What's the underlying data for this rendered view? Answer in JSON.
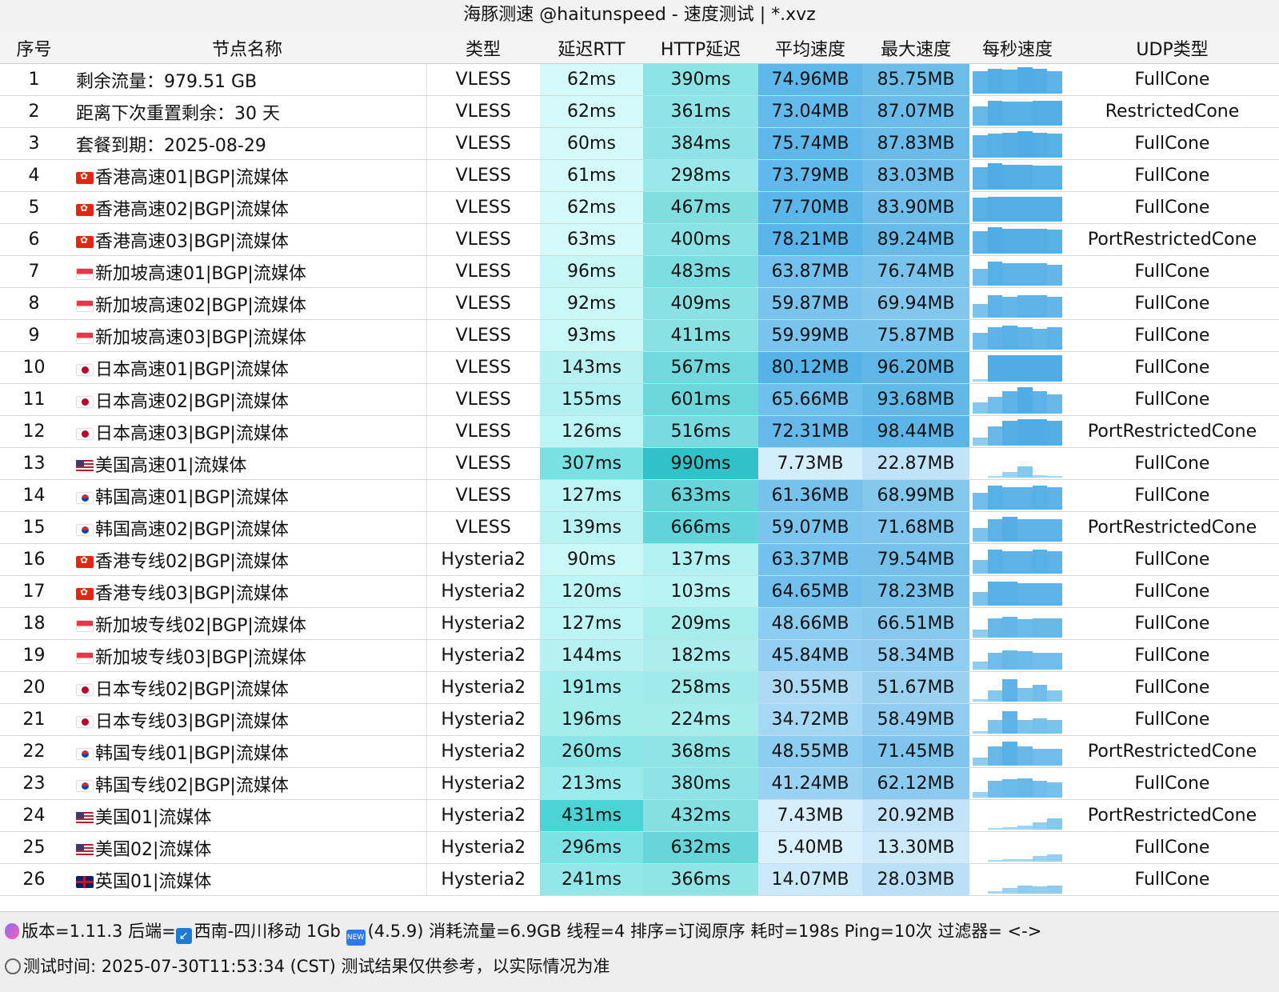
{
  "window": {
    "title": "海豚测速 @haitunspeed  - 速度测试 | *.xvz"
  },
  "columns": [
    "序号",
    "节点名称",
    "类型",
    "延迟RTT",
    "HTTP延迟",
    "平均速度",
    "最大速度",
    "每秒速度",
    "UDP类型"
  ],
  "rows": [
    {
      "idx": "1",
      "flag": "",
      "name": "剩余流量：979.51 GB",
      "type": "VLESS",
      "rtt": "62ms",
      "http": "390ms",
      "avg": "74.96MB",
      "max": "85.75MB",
      "udp": "FullCone",
      "spark": [
        0.8,
        0.9,
        0.85,
        0.95,
        0.9,
        0.8
      ]
    },
    {
      "idx": "2",
      "flag": "",
      "name": "距离下次重置剩余：30 天",
      "type": "VLESS",
      "rtt": "62ms",
      "http": "361ms",
      "avg": "73.04MB",
      "max": "87.07MB",
      "udp": "RestrictedCone",
      "spark": [
        0.7,
        0.9,
        0.85,
        0.85,
        0.9,
        0.9
      ]
    },
    {
      "idx": "3",
      "flag": "",
      "name": "套餐到期：2025-08-29",
      "type": "VLESS",
      "rtt": "60ms",
      "http": "384ms",
      "avg": "75.74MB",
      "max": "87.83MB",
      "udp": "FullCone",
      "spark": [
        0.8,
        0.85,
        0.9,
        0.95,
        0.9,
        0.85
      ]
    },
    {
      "idx": "4",
      "flag": "hk",
      "name": "香港高速01|BGP|流媒体",
      "type": "VLESS",
      "rtt": "61ms",
      "http": "298ms",
      "avg": "73.79MB",
      "max": "83.03MB",
      "udp": "FullCone",
      "spark": [
        0.8,
        0.95,
        0.9,
        0.9,
        0.85,
        0.85
      ]
    },
    {
      "idx": "5",
      "flag": "hk",
      "name": "香港高速02|BGP|流媒体",
      "type": "VLESS",
      "rtt": "62ms",
      "http": "467ms",
      "avg": "77.70MB",
      "max": "83.90MB",
      "udp": "FullCone",
      "spark": [
        0.85,
        0.9,
        0.9,
        0.9,
        0.9,
        0.9
      ]
    },
    {
      "idx": "6",
      "flag": "hk",
      "name": "香港高速03|BGP|流媒体",
      "type": "VLESS",
      "rtt": "63ms",
      "http": "400ms",
      "avg": "78.21MB",
      "max": "89.24MB",
      "udp": "PortRestrictedCone",
      "spark": [
        0.8,
        0.95,
        0.9,
        0.9,
        0.9,
        0.85
      ]
    },
    {
      "idx": "7",
      "flag": "sg",
      "name": "新加坡高速01|BGP|流媒体",
      "type": "VLESS",
      "rtt": "96ms",
      "http": "483ms",
      "avg": "63.87MB",
      "max": "76.74MB",
      "udp": "FullCone",
      "spark": [
        0.6,
        0.85,
        0.8,
        0.8,
        0.8,
        0.75
      ]
    },
    {
      "idx": "8",
      "flag": "sg",
      "name": "新加坡高速02|BGP|流媒体",
      "type": "VLESS",
      "rtt": "92ms",
      "http": "409ms",
      "avg": "59.87MB",
      "max": "69.94MB",
      "udp": "FullCone",
      "spark": [
        0.5,
        0.8,
        0.75,
        0.8,
        0.8,
        0.75
      ]
    },
    {
      "idx": "9",
      "flag": "sg",
      "name": "新加坡高速03|BGP|流媒体",
      "type": "VLESS",
      "rtt": "93ms",
      "http": "411ms",
      "avg": "59.99MB",
      "max": "75.87MB",
      "udp": "FullCone",
      "spark": [
        0.6,
        0.8,
        0.85,
        0.8,
        0.75,
        0.8
      ]
    },
    {
      "idx": "10",
      "flag": "jp",
      "name": "日本高速01|BGP|流媒体",
      "type": "VLESS",
      "rtt": "143ms",
      "http": "567ms",
      "avg": "80.12MB",
      "max": "96.20MB",
      "udp": "FullCone",
      "spark": [
        0.1,
        0.95,
        0.95,
        0.95,
        0.95,
        0.95
      ]
    },
    {
      "idx": "11",
      "flag": "jp",
      "name": "日本高速02|BGP|流媒体",
      "type": "VLESS",
      "rtt": "155ms",
      "http": "601ms",
      "avg": "65.66MB",
      "max": "93.68MB",
      "udp": "FullCone",
      "spark": [
        0.4,
        0.6,
        0.8,
        0.95,
        0.8,
        0.7
      ]
    },
    {
      "idx": "12",
      "flag": "jp",
      "name": "日本高速03|BGP|流媒体",
      "type": "VLESS",
      "rtt": "126ms",
      "http": "516ms",
      "avg": "72.31MB",
      "max": "98.44MB",
      "udp": "PortRestrictedCone",
      "spark": [
        0.3,
        0.7,
        0.9,
        0.95,
        0.95,
        0.9
      ]
    },
    {
      "idx": "13",
      "flag": "us",
      "name": "美国高速01|流媒体",
      "type": "VLESS",
      "rtt": "307ms",
      "http": "990ms",
      "avg": "7.73MB",
      "max": "22.87MB",
      "udp": "FullCone",
      "spark": [
        0.0,
        0.05,
        0.2,
        0.4,
        0.1,
        0.05
      ]
    },
    {
      "idx": "14",
      "flag": "kr",
      "name": "韩国高速01|BGP|流媒体",
      "type": "VLESS",
      "rtt": "127ms",
      "http": "633ms",
      "avg": "61.36MB",
      "max": "68.99MB",
      "udp": "FullCone",
      "spark": [
        0.6,
        0.85,
        0.8,
        0.8,
        0.85,
        0.8
      ]
    },
    {
      "idx": "15",
      "flag": "kr",
      "name": "韩国高速02|BGP|流媒体",
      "type": "VLESS",
      "rtt": "139ms",
      "http": "666ms",
      "avg": "59.07MB",
      "max": "71.68MB",
      "udp": "PortRestrictedCone",
      "spark": [
        0.5,
        0.8,
        0.9,
        0.8,
        0.8,
        0.8
      ]
    },
    {
      "idx": "16",
      "flag": "hk",
      "name": "香港专线02|BGP|流媒体",
      "type": "Hysteria2",
      "rtt": "90ms",
      "http": "137ms",
      "avg": "63.37MB",
      "max": "79.54MB",
      "udp": "FullCone",
      "spark": [
        0.5,
        0.85,
        0.8,
        0.8,
        0.85,
        0.8
      ]
    },
    {
      "idx": "17",
      "flag": "hk",
      "name": "香港专线03|BGP|流媒体",
      "type": "Hysteria2",
      "rtt": "120ms",
      "http": "103ms",
      "avg": "64.65MB",
      "max": "78.23MB",
      "udp": "FullCone",
      "spark": [
        0.5,
        0.85,
        0.85,
        0.8,
        0.8,
        0.8
      ]
    },
    {
      "idx": "18",
      "flag": "sg",
      "name": "新加坡专线02|BGP|流媒体",
      "type": "Hysteria2",
      "rtt": "127ms",
      "http": "209ms",
      "avg": "48.66MB",
      "max": "66.51MB",
      "udp": "FullCone",
      "spark": [
        0.3,
        0.7,
        0.75,
        0.65,
        0.7,
        0.7
      ]
    },
    {
      "idx": "19",
      "flag": "sg",
      "name": "新加坡专线03|BGP|流媒体",
      "type": "Hysteria2",
      "rtt": "144ms",
      "http": "182ms",
      "avg": "45.84MB",
      "max": "58.34MB",
      "udp": "FullCone",
      "spark": [
        0.3,
        0.6,
        0.7,
        0.65,
        0.6,
        0.6
      ]
    },
    {
      "idx": "20",
      "flag": "jp",
      "name": "日本专线02|BGP|流媒体",
      "type": "Hysteria2",
      "rtt": "191ms",
      "http": "258ms",
      "avg": "30.55MB",
      "max": "51.67MB",
      "udp": "FullCone",
      "spark": [
        0.1,
        0.4,
        0.8,
        0.5,
        0.6,
        0.4
      ]
    },
    {
      "idx": "21",
      "flag": "jp",
      "name": "日本专线03|BGP|流媒体",
      "type": "Hysteria2",
      "rtt": "196ms",
      "http": "224ms",
      "avg": "34.72MB",
      "max": "58.49MB",
      "udp": "FullCone",
      "spark": [
        0.1,
        0.5,
        0.8,
        0.5,
        0.55,
        0.5
      ]
    },
    {
      "idx": "22",
      "flag": "kr",
      "name": "韩国专线01|BGP|流媒体",
      "type": "Hysteria2",
      "rtt": "260ms",
      "http": "368ms",
      "avg": "48.55MB",
      "max": "71.45MB",
      "udp": "PortRestrictedCone",
      "spark": [
        0.3,
        0.7,
        0.85,
        0.7,
        0.6,
        0.6
      ]
    },
    {
      "idx": "23",
      "flag": "kr",
      "name": "韩国专线02|BGP|流媒体",
      "type": "Hysteria2",
      "rtt": "213ms",
      "http": "380ms",
      "avg": "41.24MB",
      "max": "62.12MB",
      "udp": "FullCone",
      "spark": [
        0.2,
        0.6,
        0.65,
        0.7,
        0.6,
        0.55
      ]
    },
    {
      "idx": "24",
      "flag": "us",
      "name": "美国01|流媒体",
      "type": "Hysteria2",
      "rtt": "431ms",
      "http": "432ms",
      "avg": "7.43MB",
      "max": "20.92MB",
      "udp": "PortRestrictedCone",
      "spark": [
        0.0,
        0.05,
        0.1,
        0.15,
        0.25,
        0.4
      ]
    },
    {
      "idx": "25",
      "flag": "us",
      "name": "美国02|流媒体",
      "type": "Hysteria2",
      "rtt": "296ms",
      "http": "632ms",
      "avg": "5.40MB",
      "max": "13.30MB",
      "udp": "FullCone",
      "spark": [
        0.0,
        0.05,
        0.1,
        0.1,
        0.2,
        0.25
      ]
    },
    {
      "idx": "26",
      "flag": "gb",
      "name": "英国01|流媒体",
      "type": "Hysteria2",
      "rtt": "241ms",
      "http": "366ms",
      "avg": "14.07MB",
      "max": "28.03MB",
      "udp": "FullCone",
      "spark": [
        0.0,
        0.1,
        0.2,
        0.3,
        0.25,
        0.3
      ]
    }
  ],
  "footer": {
    "line1": "版本=1.11.3  后端=",
    "line1_backend": "西南-四川移动 1Gb",
    "line1_rest": "(4.5.9) 消耗流量=6.9GB  线程=4  排序=订阅原序  耗时=198s  Ping=10次  过滤器= <->",
    "line2": "测试时间: 2025-07-30T11:53:34 (CST)  测试结果仅供参考，以实际情况为准"
  },
  "icons": {
    "version": "dna-icon",
    "backend": "arrow-icon",
    "new": "new-badge-icon",
    "time": "clock-icon"
  }
}
